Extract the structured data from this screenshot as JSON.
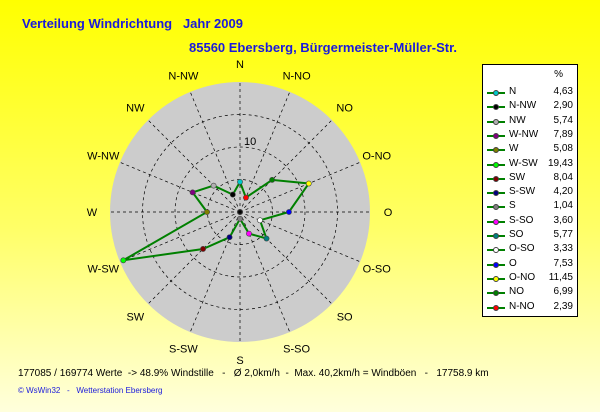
{
  "chart_data": {
    "type": "radar",
    "title": "Verteilung Windrichtung   Jahr 2009",
    "subtitle": "85560 Ebersberg, Bürgermeister-Müller-Str.",
    "directions": [
      "N",
      "N-NO",
      "NO",
      "O-NO",
      "O",
      "O-SO",
      "SO",
      "S-SO",
      "S",
      "S-SW",
      "SW",
      "W-SW",
      "W",
      "W-NW",
      "NW",
      "N-NW"
    ],
    "values": [
      4.63,
      2.39,
      6.99,
      11.45,
      7.53,
      3.33,
      5.77,
      3.6,
      1.04,
      4.2,
      8.04,
      19.43,
      5.08,
      7.89,
      5.74,
      2.9
    ],
    "radial_tick": "10",
    "radial_max": 20,
    "line_color": "#008000",
    "face_color": "#cccccc",
    "legend_unit": "%",
    "legend": [
      {
        "name": "N",
        "value": "4,63",
        "color": "#00c8c8"
      },
      {
        "name": "N-NW",
        "value": "2,90",
        "color": "#000000"
      },
      {
        "name": "NW",
        "value": "5,74",
        "color": "#b0b0b0"
      },
      {
        "name": "W-NW",
        "value": "7,89",
        "color": "#800080"
      },
      {
        "name": "W",
        "value": "5,08",
        "color": "#808000"
      },
      {
        "name": "W-SW",
        "value": "19,43",
        "color": "#00ff00"
      },
      {
        "name": "SW",
        "value": "8,04",
        "color": "#800000"
      },
      {
        "name": "S-SW",
        "value": "4,20",
        "color": "#000080"
      },
      {
        "name": "S",
        "value": "1,04",
        "color": "#808080"
      },
      {
        "name": "S-SO",
        "value": "3,60",
        "color": "#ff00ff"
      },
      {
        "name": "SO",
        "value": "5,77",
        "color": "#008080"
      },
      {
        "name": "O-SO",
        "value": "3,33",
        "color": "#ffffff"
      },
      {
        "name": "O",
        "value": "7,53",
        "color": "#0000ff"
      },
      {
        "name": "O-NO",
        "value": "11,45",
        "color": "#ffff00"
      },
      {
        "name": "NO",
        "value": "6,99",
        "color": "#008000"
      },
      {
        "name": "N-NO",
        "value": "2,39",
        "color": "#ff0000"
      }
    ]
  },
  "stats": "177085 / 169774 Werte  -> 48.9% Windstille   -   Ø 2,0km/h  -  Max. 40,2km/h = Windböen   -   17758.9 km",
  "footer": "© WsWin32   -   Wetterstation Ebersberg"
}
